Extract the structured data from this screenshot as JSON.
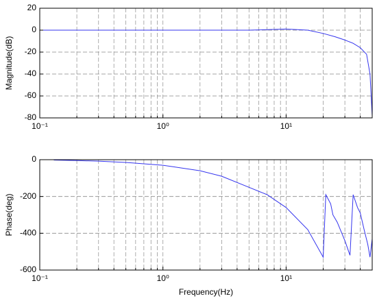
{
  "chart_data": [
    {
      "type": "line",
      "ylabel": "Magnitude(dB)",
      "xscale": "log",
      "grid": true,
      "xlim": [
        0.1,
        50
      ],
      "xticks": [
        {
          "value": 0.1,
          "label": "10⁻¹"
        },
        {
          "value": 1,
          "label": "10⁰"
        },
        {
          "value": 10,
          "label": "10¹"
        }
      ],
      "xminor_ticks": [
        0.2,
        0.3,
        0.4,
        0.5,
        0.6,
        0.7,
        0.8,
        0.9,
        2,
        3,
        4,
        5,
        6,
        7,
        8,
        9,
        20,
        30,
        40
      ],
      "ylim": [
        -80,
        20
      ],
      "yticks": [
        -80,
        -60,
        -40,
        -20,
        0,
        20
      ],
      "series": [
        {
          "color": "#3333ee",
          "x": [
            0.1,
            0.2,
            0.5,
            1,
            2,
            3,
            5,
            10,
            15,
            20,
            25,
            30,
            35,
            40,
            45,
            48,
            50
          ],
          "values": [
            0,
            0,
            0,
            0,
            0,
            0,
            0,
            1,
            0,
            -3,
            -6,
            -9,
            -12,
            -16,
            -22,
            -40,
            -78
          ]
        }
      ]
    },
    {
      "type": "line",
      "xlabel": "Frequency(Hz)",
      "ylabel": "Phase(deg)",
      "xscale": "log",
      "grid": true,
      "xlim": [
        0.1,
        50
      ],
      "xticks": [
        {
          "value": 0.1,
          "label": "10⁻¹"
        },
        {
          "value": 1,
          "label": "10⁰"
        },
        {
          "value": 10,
          "label": "10¹"
        }
      ],
      "xminor_ticks": [
        0.2,
        0.3,
        0.4,
        0.5,
        0.6,
        0.7,
        0.8,
        0.9,
        2,
        3,
        4,
        5,
        6,
        7,
        8,
        9,
        20,
        30,
        40
      ],
      "ylim": [
        -600,
        0
      ],
      "yticks": [
        -600,
        -400,
        -200,
        0
      ],
      "series": [
        {
          "color": "#3333ee",
          "x": [
            0.13,
            0.2,
            0.3,
            0.5,
            1,
            2,
            3,
            5,
            7,
            10,
            15,
            20,
            21,
            23,
            24,
            26,
            30,
            33,
            35,
            38,
            40,
            43,
            46,
            48,
            50
          ],
          "values": [
            -2,
            -5,
            -8,
            -15,
            -30,
            -60,
            -90,
            -150,
            -190,
            -260,
            -380,
            -530,
            -190,
            -240,
            -300,
            -340,
            -440,
            -520,
            -190,
            -260,
            -290,
            -380,
            -460,
            -530,
            -430
          ]
        }
      ]
    }
  ]
}
